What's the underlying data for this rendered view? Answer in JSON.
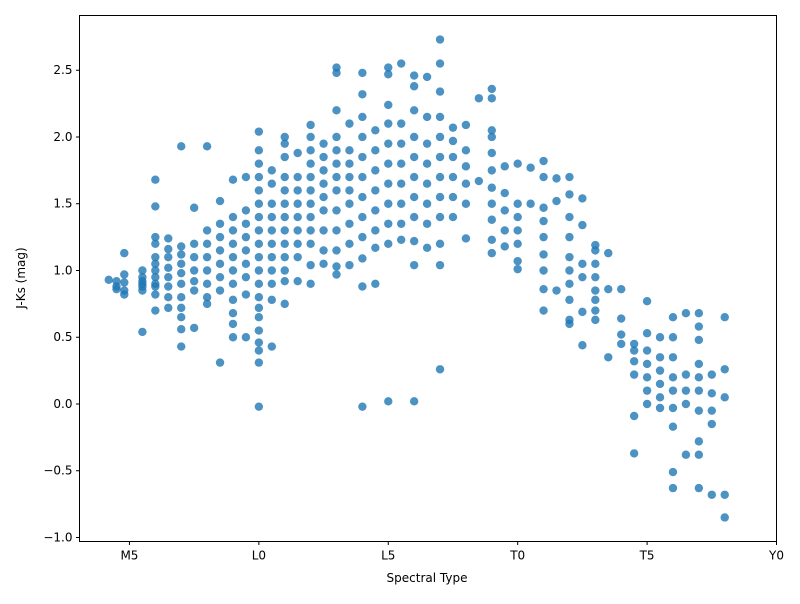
{
  "chart_data": {
    "type": "scatter",
    "title": "",
    "xlabel": "Spectral Type",
    "ylabel": "J-Ks (mag)",
    "xlim": [
      13.07,
      40
    ],
    "ylim": [
      -1.03,
      2.91
    ],
    "x_ticks": [
      {
        "value": 15,
        "label": "M5"
      },
      {
        "value": 20,
        "label": "L0"
      },
      {
        "value": 25,
        "label": "L5"
      },
      {
        "value": 30,
        "label": "T0"
      },
      {
        "value": 35,
        "label": "T5"
      },
      {
        "value": 40,
        "label": "Y0"
      }
    ],
    "y_ticks": [
      {
        "value": -1.0,
        "label": "−1.0"
      },
      {
        "value": -0.5,
        "label": "−0.5"
      },
      {
        "value": 0.0,
        "label": "0.0"
      },
      {
        "value": 0.5,
        "label": "0.5"
      },
      {
        "value": 1.0,
        "label": "1.0"
      },
      {
        "value": 1.5,
        "label": "1.5"
      },
      {
        "value": 2.0,
        "label": "2.0"
      },
      {
        "value": 2.5,
        "label": "2.5"
      }
    ],
    "grid": false,
    "marker_color": "#1f77b4",
    "marker_alpha": 0.8,
    "columns": [
      {
        "x": 14.2,
        "ys": [
          0.93
        ]
      },
      {
        "x": 14.5,
        "ys": [
          0.88,
          0.92,
          0.86
        ]
      },
      {
        "x": 14.8,
        "ys": [
          0.97,
          0.91,
          0.85,
          0.82,
          1.13
        ]
      },
      {
        "x": 15.5,
        "ys": [
          0.54,
          0.85,
          0.9,
          0.95,
          1.0,
          0.88,
          0.92
        ]
      },
      {
        "x": 16,
        "ys": [
          0.7,
          0.82,
          0.9,
          0.95,
          1.0,
          1.05,
          1.1,
          1.2,
          1.25,
          1.48,
          1.68,
          0.88
        ]
      },
      {
        "x": 16.5,
        "ys": [
          0.72,
          0.8,
          0.88,
          0.95,
          1.02,
          1.1,
          1.16,
          1.24
        ]
      },
      {
        "x": 17,
        "ys": [
          0.43,
          0.56,
          0.65,
          0.72,
          0.8,
          0.9,
          0.98,
          1.05,
          1.12,
          1.18,
          1.93
        ]
      },
      {
        "x": 17.5,
        "ys": [
          0.57,
          0.85,
          0.92,
          1.0,
          1.1,
          1.2,
          1.47
        ]
      },
      {
        "x": 18,
        "ys": [
          0.75,
          0.8,
          0.9,
          1.0,
          1.1,
          1.2,
          1.3,
          1.93
        ]
      },
      {
        "x": 18.5,
        "ys": [
          0.31,
          0.85,
          0.95,
          1.05,
          1.15,
          1.25,
          1.35,
          1.52
        ]
      },
      {
        "x": 19,
        "ys": [
          0.5,
          0.6,
          0.68,
          0.78,
          0.9,
          1.0,
          1.1,
          1.2,
          1.3,
          1.4,
          1.68
        ]
      },
      {
        "x": 19.5,
        "ys": [
          0.5,
          0.82,
          0.95,
          1.05,
          1.15,
          1.25,
          1.35,
          1.45,
          1.7
        ]
      },
      {
        "x": 20,
        "ys": [
          -0.02,
          0.31,
          0.4,
          0.46,
          0.55,
          0.65,
          0.72,
          0.8,
          0.9,
          1.0,
          1.1,
          1.2,
          1.3,
          1.4,
          1.5,
          1.6,
          1.7,
          1.8,
          1.9,
          2.04
        ]
      },
      {
        "x": 20.5,
        "ys": [
          0.43,
          0.78,
          0.9,
          1.0,
          1.1,
          1.2,
          1.3,
          1.4,
          1.5,
          1.65,
          1.75
        ]
      },
      {
        "x": 21,
        "ys": [
          0.75,
          0.92,
          1.0,
          1.1,
          1.2,
          1.3,
          1.4,
          1.5,
          1.6,
          1.7,
          1.85,
          1.95,
          2.0
        ]
      },
      {
        "x": 21.5,
        "ys": [
          0.92,
          1.1,
          1.2,
          1.3,
          1.4,
          1.5,
          1.6,
          1.7,
          1.88
        ]
      },
      {
        "x": 22,
        "ys": [
          0.9,
          1.04,
          1.2,
          1.3,
          1.4,
          1.5,
          1.6,
          1.7,
          1.8,
          1.9,
          2.0,
          2.09
        ]
      },
      {
        "x": 22.5,
        "ys": [
          1.05,
          1.15,
          1.3,
          1.45,
          1.55,
          1.65,
          1.75,
          1.85,
          1.95
        ]
      },
      {
        "x": 23,
        "ys": [
          0.97,
          1.03,
          1.15,
          1.3,
          1.45,
          1.6,
          1.7,
          1.8,
          1.9,
          2.0,
          2.2,
          2.48,
          2.52
        ]
      },
      {
        "x": 23.5,
        "ys": [
          1.04,
          1.2,
          1.35,
          1.5,
          1.6,
          1.7,
          1.8,
          1.9,
          2.1
        ]
      },
      {
        "x": 24,
        "ys": [
          -0.02,
          0.88,
          1.09,
          1.25,
          1.4,
          1.55,
          1.7,
          1.85,
          2.0,
          2.15,
          2.32,
          2.48
        ]
      },
      {
        "x": 24.5,
        "ys": [
          0.9,
          1.17,
          1.3,
          1.45,
          1.6,
          1.75,
          1.9,
          2.05
        ]
      },
      {
        "x": 25,
        "ys": [
          0.02,
          1.2,
          1.35,
          1.5,
          1.65,
          1.8,
          1.95,
          2.1,
          2.24,
          2.47,
          2.52
        ]
      },
      {
        "x": 25.5,
        "ys": [
          1.23,
          1.35,
          1.5,
          1.65,
          1.8,
          1.95,
          2.1,
          2.55
        ]
      },
      {
        "x": 26,
        "ys": [
          0.02,
          1.04,
          1.22,
          1.4,
          1.55,
          1.7,
          1.85,
          2.0,
          2.2,
          2.38,
          2.46
        ]
      },
      {
        "x": 26.5,
        "ys": [
          1.17,
          1.35,
          1.5,
          1.65,
          1.8,
          1.95,
          2.15,
          2.45
        ]
      },
      {
        "x": 27,
        "ys": [
          0.26,
          1.04,
          1.2,
          1.4,
          1.55,
          1.7,
          1.85,
          2.0,
          2.15,
          2.34,
          2.55,
          2.73
        ]
      },
      {
        "x": 27.5,
        "ys": [
          1.4,
          1.55,
          1.7,
          1.85,
          1.97,
          2.07
        ]
      },
      {
        "x": 28,
        "ys": [
          1.24,
          1.5,
          1.65,
          1.78,
          1.9,
          2.09
        ]
      },
      {
        "x": 28.5,
        "ys": [
          1.67,
          2.29
        ]
      },
      {
        "x": 29,
        "ys": [
          1.13,
          1.23,
          1.38,
          1.5,
          1.62,
          1.75,
          1.88,
          2.0,
          2.05,
          2.29,
          2.36
        ]
      },
      {
        "x": 29.5,
        "ys": [
          1.18,
          1.3,
          1.45,
          1.58,
          1.78
        ]
      },
      {
        "x": 30,
        "ys": [
          1.01,
          1.07,
          1.2,
          1.3,
          1.4,
          1.5,
          1.8
        ]
      },
      {
        "x": 30.5,
        "ys": [
          1.5,
          1.77
        ]
      },
      {
        "x": 31,
        "ys": [
          0.7,
          0.86,
          1.0,
          1.12,
          1.25,
          1.37,
          1.47,
          1.7,
          1.82
        ]
      },
      {
        "x": 31.5,
        "ys": [
          0.85,
          1.52,
          1.69
        ]
      },
      {
        "x": 32,
        "ys": [
          0.6,
          0.63,
          0.78,
          0.9,
          1.0,
          1.1,
          1.25,
          1.4,
          1.57,
          1.7
        ]
      },
      {
        "x": 32.5,
        "ys": [
          0.44,
          0.69,
          0.95,
          1.05,
          1.34,
          1.54
        ]
      },
      {
        "x": 33,
        "ys": [
          0.63,
          0.7,
          0.78,
          0.85,
          0.95,
          1.05,
          1.15,
          1.19
        ]
      },
      {
        "x": 33.5,
        "ys": [
          0.35,
          0.86,
          1.13
        ]
      },
      {
        "x": 34,
        "ys": [
          0.45,
          0.52,
          0.64,
          0.86
        ]
      },
      {
        "x": 34.5,
        "ys": [
          -0.37,
          -0.09,
          0.22,
          0.32,
          0.4,
          0.45
        ]
      },
      {
        "x": 35,
        "ys": [
          0.0,
          0.1,
          0.2,
          0.3,
          0.4,
          0.53,
          0.77
        ]
      },
      {
        "x": 35.5,
        "ys": [
          -0.03,
          0.05,
          0.15,
          0.25,
          0.35,
          0.5
        ]
      },
      {
        "x": 36,
        "ys": [
          -0.63,
          -0.51,
          -0.17,
          -0.03,
          0.1,
          0.2,
          0.35,
          0.5,
          0.65
        ]
      },
      {
        "x": 36.5,
        "ys": [
          -0.38,
          0.0,
          0.1,
          0.22,
          0.68
        ]
      },
      {
        "x": 37,
        "ys": [
          -0.63,
          -0.38,
          -0.28,
          -0.05,
          0.1,
          0.2,
          0.3,
          0.48,
          0.58,
          0.68
        ]
      },
      {
        "x": 37.5,
        "ys": [
          -0.68,
          -0.15,
          -0.05,
          0.08,
          0.22
        ]
      },
      {
        "x": 38,
        "ys": [
          -0.85,
          -0.68,
          0.05,
          0.26,
          0.65
        ]
      }
    ]
  }
}
